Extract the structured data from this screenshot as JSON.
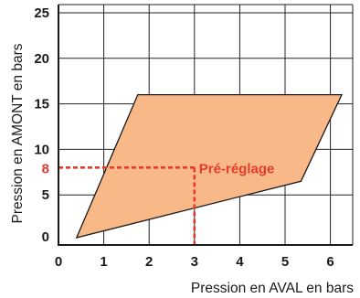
{
  "chart_data": {
    "type": "area",
    "xlabel": "Pression en AVAL en bars",
    "ylabel": "Pression en AMONT en bars",
    "xlim": [
      0,
      6.5
    ],
    "ylim": [
      -0.5,
      26
    ],
    "x_ticks": [
      "0",
      "1",
      "2",
      "3",
      "4",
      "5",
      "6"
    ],
    "y_ticks": [
      "0",
      "5",
      "10",
      "15",
      "20",
      "25"
    ],
    "grid": true,
    "series": [
      {
        "values": [
          {
            "x": 0.4,
            "y": 0.3
          },
          {
            "x": 1.75,
            "y": 16
          },
          {
            "x": 6.25,
            "y": 16
          },
          {
            "x": 5.35,
            "y": 6.5
          }
        ],
        "color": "#f9b887",
        "edge_color": "#1a1a1a"
      }
    ],
    "annotations": [
      {
        "text": "Pré-réglage",
        "y_label": "8",
        "x": 3,
        "y": 8,
        "color": "#e53b2c",
        "style": "dashed"
      }
    ],
    "colors": {
      "grid": "#222222",
      "axis": "#1a1a1a"
    }
  }
}
